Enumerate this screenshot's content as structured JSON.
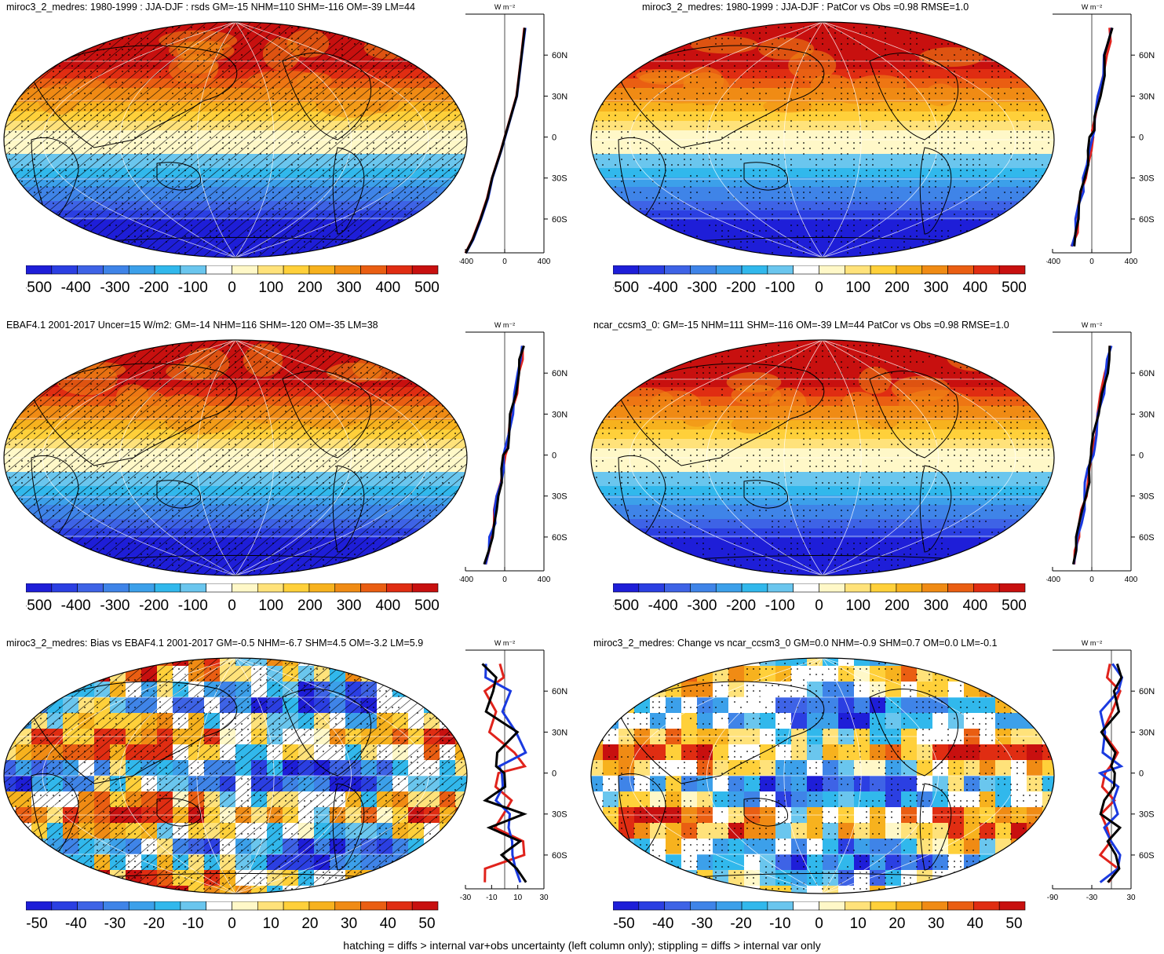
{
  "colors": {
    "palette": [
      "#1e1ed8",
      "#2b3fe2",
      "#3e63e6",
      "#3f84e8",
      "#3ca0ea",
      "#31b8ec",
      "#6ac6ee",
      "#ffffff",
      "#fff8c8",
      "#ffe27a",
      "#ffd03a",
      "#f7b21e",
      "#f08b14",
      "#ea5e12",
      "#e02d12",
      "#c8100f"
    ],
    "model_line": "#e0231c",
    "obs_line": "#1a3ae0",
    "other_line": "#000000"
  },
  "footer": "hatching = diffs > internal var+obs uncertainty (left column only); stippling = diffs > internal var only",
  "panels": [
    {
      "id": "model-clim",
      "title": "miroc3_2_medres: 1980-1999 : JJA-DJF : rsds GM=-15 NHM=110 SHM=-116 OM=-39 LM=44",
      "colorbar_labels": [
        "-500",
        "-400",
        "-300",
        "-200",
        "-100",
        "0",
        "100",
        "200",
        "300",
        "400",
        "500"
      ],
      "zonal_unit": "W m⁻²",
      "zonal_xticks": [
        "-400",
        "0",
        "400"
      ],
      "zonal_ylabels": [
        "60N",
        "30N",
        "0",
        "30S",
        "60S"
      ],
      "hatched": true,
      "pattern": "clim"
    },
    {
      "id": "other-model-clim-1",
      "title": "miroc3_2_medres: 1980-1999 : JJA-DJF : PatCor vs Obs =0.98 RMSE=1.0",
      "colorbar_labels": [
        "-500",
        "-400",
        "-300",
        "-200",
        "-100",
        "0",
        "100",
        "200",
        "300",
        "400",
        "500"
      ],
      "zonal_unit": "W m⁻²",
      "zonal_xticks": [
        "-400",
        "0",
        "400"
      ],
      "zonal_ylabels": [
        "60N",
        "30N",
        "0",
        "30S",
        "60S"
      ],
      "hatched": false,
      "pattern": "clim"
    },
    {
      "id": "obs-clim",
      "title": "EBAF4.1 2001-2017 Uncer=15 W/m2: GM=-14 NHM=116 SHM=-120 OM=-35 LM=38",
      "colorbar_labels": [
        "-500",
        "-400",
        "-300",
        "-200",
        "-100",
        "0",
        "100",
        "200",
        "300",
        "400",
        "500"
      ],
      "zonal_unit": "W m⁻²",
      "zonal_xticks": [
        "-400",
        "0",
        "400"
      ],
      "zonal_ylabels": [
        "60N",
        "30N",
        "0",
        "30S",
        "60S"
      ],
      "hatched": true,
      "pattern": "clim"
    },
    {
      "id": "other-model-clim-2",
      "title": "ncar_ccsm3_0: GM=-15 NHM=111 SHM=-116 OM=-39 LM=44 PatCor vs Obs =0.98 RMSE=1.0",
      "colorbar_labels": [
        "-500",
        "-400",
        "-300",
        "-200",
        "-100",
        "0",
        "100",
        "200",
        "300",
        "400",
        "500"
      ],
      "zonal_unit": "W m⁻²",
      "zonal_xticks": [
        "-400",
        "0",
        "400"
      ],
      "zonal_ylabels": [
        "60N",
        "30N",
        "0",
        "30S",
        "60S"
      ],
      "hatched": false,
      "pattern": "clim"
    },
    {
      "id": "bias",
      "title": "miroc3_2_medres: Bias vs EBAF4.1 2001-2017 GM=-0.5 NHM=-6.7 SHM=4.5 OM=-3.2 LM=5.9",
      "colorbar_labels": [
        "-50",
        "-40",
        "-30",
        "-20",
        "-10",
        "0",
        "10",
        "20",
        "30",
        "40",
        "50"
      ],
      "zonal_unit": "W m⁻²",
      "zonal_xticks": [
        "-30",
        "-10",
        "10",
        "30"
      ],
      "zonal_ylabels": [
        "60N",
        "30N",
        "0",
        "30S",
        "60S"
      ],
      "hatched": true,
      "pattern": "noisy"
    },
    {
      "id": "change",
      "title": "miroc3_2_medres: Change vs ncar_ccsm3_0 GM=0.0 NHM=-0.9 SHM=0.7 OM=0.0 LM=-0.1",
      "colorbar_labels": [
        "-50",
        "-40",
        "-30",
        "-20",
        "-10",
        "0",
        "10",
        "20",
        "30",
        "40",
        "50"
      ],
      "zonal_unit": "W m⁻²",
      "zonal_xticks": [
        "-90",
        "-30",
        "30"
      ],
      "zonal_ylabels": [
        "60N",
        "30N",
        "0",
        "30S",
        "60S"
      ],
      "hatched": false,
      "pattern": "noisy"
    }
  ],
  "chart_data": [
    {
      "type": "heatmap",
      "panel": "model-clim",
      "title": "miroc3_2_medres: 1980-1999 : JJA-DJF : rsds GM=-15 NHM=110 SHM=-116 OM=-39 LM=44",
      "colorbar": {
        "ticks": [
          -500,
          -400,
          -300,
          -200,
          -100,
          0,
          100,
          200,
          300,
          400,
          500
        ]
      },
      "zonal_mean": {
        "xlim": [
          -400,
          400
        ],
        "lat": [
          80,
          60,
          30,
          10,
          0,
          -10,
          -30,
          -45,
          -60,
          -75,
          -85
        ],
        "series": [
          {
            "values": [
              200,
              170,
              120,
              40,
              0,
              -40,
              -130,
              -180,
              -250,
              -330,
              -400
            ]
          },
          {
            "values": [
              210,
              175,
              125,
              45,
              5,
              -35,
              -125,
              -170,
              -240,
              -320,
              -395
            ]
          },
          {
            "values": [
              205,
              172,
              122,
              42,
              2,
              -38,
              -128,
              -176,
              -246,
              -326,
              -398
            ]
          }
        ]
      }
    },
    {
      "type": "heatmap",
      "panel": "other-model-clim-1",
      "title": "miroc3_2_medres: 1980-1999 : JJA-DJF : PatCor vs Obs =0.98 RMSE=1.0",
      "colorbar": {
        "ticks": [
          -500,
          -400,
          -300,
          -200,
          -100,
          0,
          100,
          200,
          300,
          400,
          500
        ]
      }
    },
    {
      "type": "heatmap",
      "panel": "obs-clim",
      "title": "EBAF4.1 2001-2017 Uncer=15 W/m2: GM=-14 NHM=116 SHM=-120 OM=-35 LM=38",
      "colorbar": {
        "ticks": [
          -500,
          -400,
          -300,
          -200,
          -100,
          0,
          100,
          200,
          300,
          400,
          500
        ]
      }
    },
    {
      "type": "heatmap",
      "panel": "other-model-clim-2",
      "title": "ncar_ccsm3_0: GM=-15 NHM=111 SHM=-116 OM=-39 LM=44 PatCor vs Obs =0.98 RMSE=1.0",
      "colorbar": {
        "ticks": [
          -500,
          -400,
          -300,
          -200,
          -100,
          0,
          100,
          200,
          300,
          400,
          500
        ]
      }
    },
    {
      "type": "heatmap",
      "panel": "bias",
      "title": "miroc3_2_medres: Bias vs EBAF4.1 2001-2017 GM=-0.5 NHM=-6.7 SHM=4.5 OM=-3.2 LM=5.9",
      "colorbar": {
        "ticks": [
          -50,
          -40,
          -30,
          -20,
          -10,
          0,
          10,
          20,
          30,
          40,
          50
        ]
      },
      "zonal_mean": {
        "xlim": [
          -30,
          30
        ]
      }
    },
    {
      "type": "heatmap",
      "panel": "change",
      "title": "miroc3_2_medres: Change vs ncar_ccsm3_0 GM=0.0 NHM=-0.9 SHM=0.7 OM=0.0 LM=-0.1",
      "colorbar": {
        "ticks": [
          -50,
          -40,
          -30,
          -20,
          -10,
          0,
          10,
          20,
          30,
          40,
          50
        ]
      },
      "zonal_mean": {
        "xlim": [
          -90,
          30
        ]
      }
    }
  ]
}
